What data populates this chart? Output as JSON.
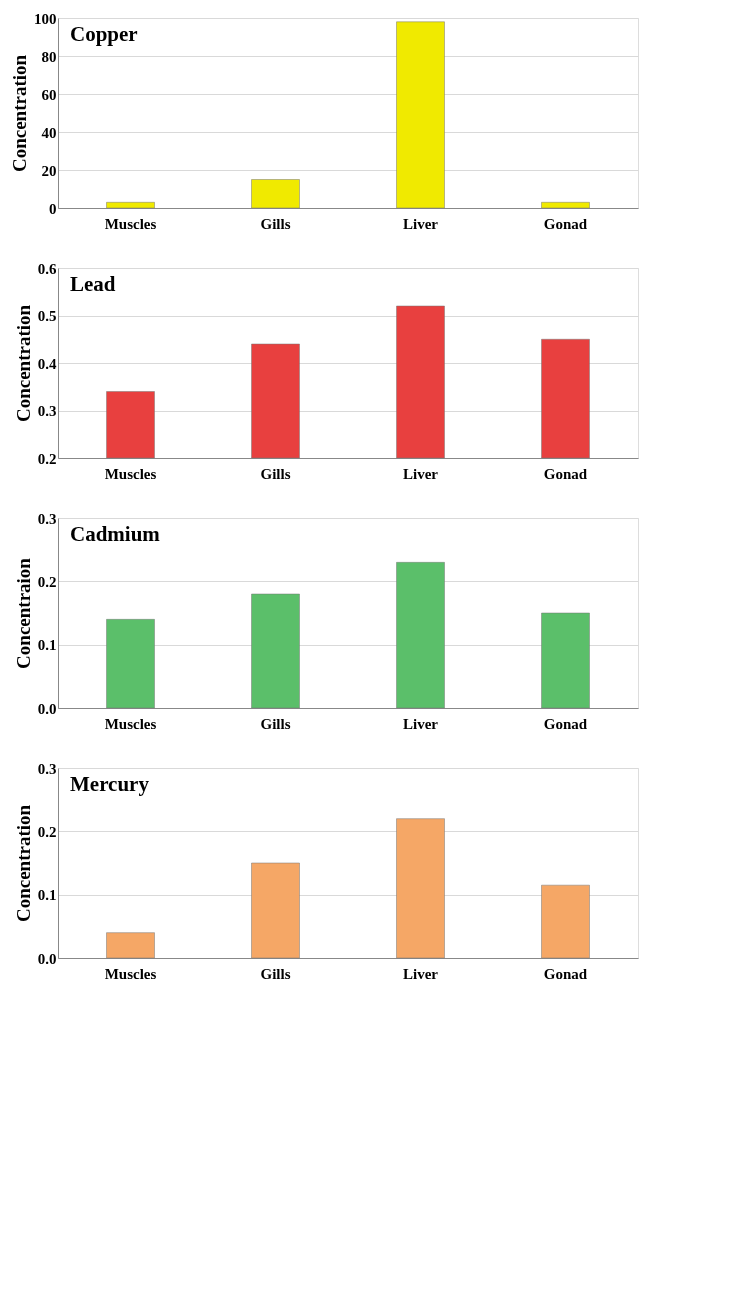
{
  "chart_data": [
    {
      "type": "bar",
      "title": "Copper",
      "ylabel": "Concentration",
      "categories": [
        "Muscles",
        "Gills",
        "Liver",
        "Gonad"
      ],
      "values": [
        3,
        15,
        98,
        3
      ],
      "color": "#f0ea00",
      "ylim": [
        0,
        100
      ],
      "yticks": [
        0,
        20,
        40,
        60,
        80,
        100
      ],
      "grid": "y"
    },
    {
      "type": "bar",
      "title": "Lead",
      "ylabel": "Concentration",
      "categories": [
        "Muscles",
        "Gills",
        "Liver",
        "Gonad"
      ],
      "values": [
        0.34,
        0.44,
        0.52,
        0.45
      ],
      "color": "#e8403f",
      "ylim": [
        0.2,
        0.6
      ],
      "yticks": [
        0.2,
        0.3,
        0.4,
        0.5,
        0.6
      ],
      "grid": "y"
    },
    {
      "type": "bar",
      "title": "Cadmium",
      "ylabel": "Concentraion",
      "categories": [
        "Muscles",
        "Gills",
        "Liver",
        "Gonad"
      ],
      "values": [
        0.14,
        0.18,
        0.23,
        0.15
      ],
      "color": "#5bbf6a",
      "ylim": [
        0,
        0.3
      ],
      "yticks": [
        {
          "value": 0,
          "label": "0.0"
        },
        0.1,
        0.2,
        0.3
      ],
      "grid": "y"
    },
    {
      "type": "bar",
      "title": "Mercury",
      "ylabel": "Concentration",
      "categories": [
        "Muscles",
        "Gills",
        "Liver",
        "Gonad"
      ],
      "values": [
        0.04,
        0.15,
        0.22,
        0.115
      ],
      "color": "#f5a766",
      "ylim": [
        0,
        0.3
      ],
      "yticks": [
        {
          "value": 0,
          "label": "0.0"
        },
        0.1,
        0.2,
        0.3
      ],
      "grid": "y"
    }
  ]
}
